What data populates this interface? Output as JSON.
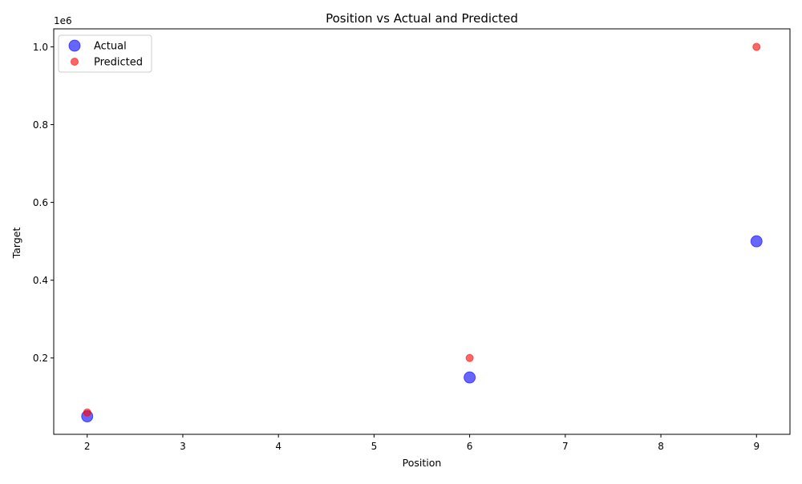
{
  "chart_data": {
    "type": "scatter",
    "title": "Position vs Actual and Predicted",
    "xlabel": "Position",
    "ylabel": "Target",
    "y_offset_text": "1e6",
    "xlim": [
      1.65,
      9.35
    ],
    "ylim": [
      3750,
      1046250
    ],
    "xticks": [
      2,
      3,
      4,
      5,
      6,
      7,
      8,
      9
    ],
    "xtick_labels": [
      "2",
      "3",
      "4",
      "5",
      "6",
      "7",
      "8",
      "9"
    ],
    "yticks": [
      200000,
      400000,
      600000,
      800000,
      1000000
    ],
    "ytick_labels": [
      "0.2",
      "0.4",
      "0.6",
      "0.8",
      "1.0"
    ],
    "grid": false,
    "legend_position": "upper-left",
    "series": [
      {
        "name": "Actual",
        "color": "#0000ff",
        "opacity": 0.6,
        "marker": "large-circle",
        "x": [
          2,
          6,
          9
        ],
        "y": [
          50000,
          150000,
          500000
        ]
      },
      {
        "name": "Predicted",
        "color": "#ff0000",
        "opacity": 0.6,
        "marker": "small-circle",
        "x": [
          2,
          6,
          9
        ],
        "y": [
          60000,
          200000,
          1000000
        ]
      }
    ]
  }
}
